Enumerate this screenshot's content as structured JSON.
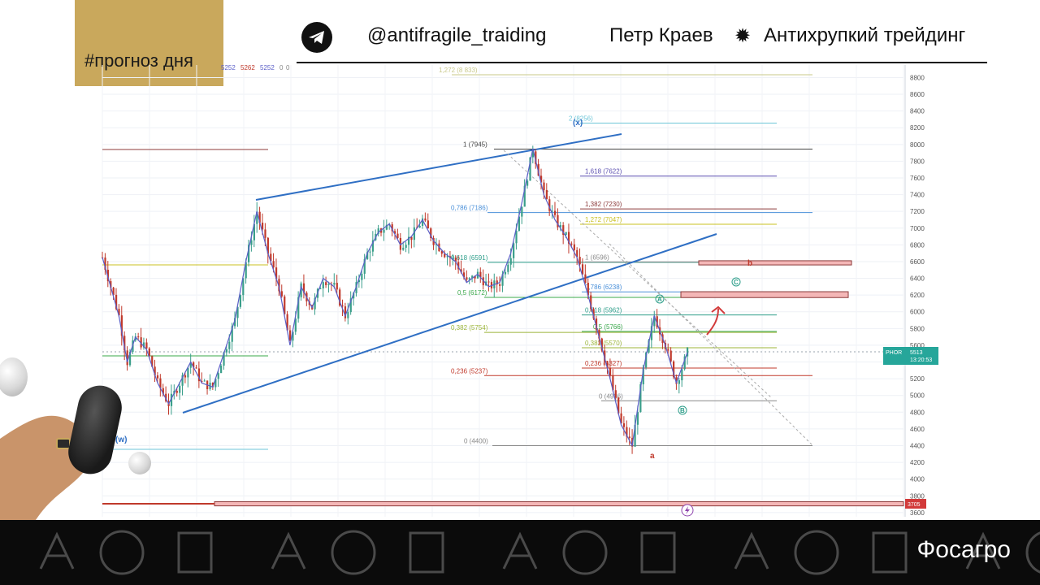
{
  "header": {
    "tag": "#прогноз дня",
    "handle": "@antifragile_traiding",
    "author": "Петр Краев",
    "separator": "✹",
    "project": "Антихрупкий трейдинг"
  },
  "icons": {
    "messenger": "telegram-icon",
    "lightning": "lightning-icon"
  },
  "footer": {
    "title": "Фосагро"
  },
  "colors": {
    "trendline": "#2f6fc4",
    "up_candle": "#3a9e8a",
    "down_candle": "#c0392b",
    "moving_average": "#5b5fc7",
    "header_tag_bg": "#c9a85c",
    "sell_zone": "#f4b7b7",
    "price_tag": "#26a69a",
    "footer_bg": "#0b0b0b"
  },
  "chart_data": {
    "type": "candlestick",
    "ticker": "PHOR",
    "last_price": "5513",
    "timer": "13:20:53",
    "stop_price": "3705",
    "top_values": [
      "5252",
      "5262",
      "5252",
      "0",
      "0"
    ],
    "ylim": [
      3550,
      8950
    ],
    "y_ticks": [
      3600,
      3800,
      4000,
      4200,
      4400,
      4600,
      4800,
      5000,
      5200,
      5400,
      5600,
      5800,
      6000,
      6200,
      6400,
      6600,
      6800,
      7000,
      7200,
      7400,
      7600,
      7800,
      8000,
      8200,
      8400,
      8600,
      8800
    ],
    "price_path": [
      [
        0,
        6650
      ],
      [
        3,
        6300
      ],
      [
        6,
        5950
      ],
      [
        9,
        5400
      ],
      [
        12,
        5700
      ],
      [
        16,
        5550
      ],
      [
        20,
        5150
      ],
      [
        24,
        4900
      ],
      [
        28,
        5150
      ],
      [
        32,
        5400
      ],
      [
        36,
        5150
      ],
      [
        40,
        5100
      ],
      [
        44,
        5500
      ],
      [
        48,
        5900
      ],
      [
        52,
        6600
      ],
      [
        56,
        7200
      ],
      [
        60,
        6700
      ],
      [
        64,
        6300
      ],
      [
        68,
        5600
      ],
      [
        72,
        6300
      ],
      [
        76,
        6050
      ],
      [
        80,
        6400
      ],
      [
        84,
        6300
      ],
      [
        88,
        5950
      ],
      [
        92,
        6300
      ],
      [
        96,
        6700
      ],
      [
        100,
        6950
      ],
      [
        104,
        7050
      ],
      [
        108,
        6800
      ],
      [
        112,
        6900
      ],
      [
        116,
        7100
      ],
      [
        120,
        6850
      ],
      [
        124,
        6700
      ],
      [
        128,
        6600
      ],
      [
        132,
        6350
      ],
      [
        136,
        6450
      ],
      [
        140,
        6300
      ],
      [
        144,
        6350
      ],
      [
        148,
        6700
      ],
      [
        152,
        7300
      ],
      [
        156,
        7950
      ],
      [
        160,
        7400
      ],
      [
        164,
        7100
      ],
      [
        168,
        6900
      ],
      [
        172,
        6650
      ],
      [
        176,
        6200
      ],
      [
        180,
        5700
      ],
      [
        184,
        5200
      ],
      [
        188,
        4650
      ],
      [
        192,
        4400
      ],
      [
        196,
        5300
      ],
      [
        200,
        5950
      ],
      [
        204,
        5600
      ],
      [
        208,
        5150
      ],
      [
        212,
        5513
      ]
    ],
    "fib_levels": [
      {
        "label": "1,272 (8 833)",
        "value": 8833,
        "color": "#c9c98a"
      },
      {
        "label": "2 (8256)",
        "value": 8256,
        "color": "#6ec6d8"
      },
      {
        "label": "1 (7945)",
        "value": 7945,
        "color": "#444444"
      },
      {
        "label": "1,618 (7622)",
        "value": 7622,
        "color": "#5b4fb0"
      },
      {
        "label": "1,382 (7230)",
        "value": 7230,
        "color": "#8c3a3a"
      },
      {
        "label": "0,786 (7186)",
        "value": 7186,
        "color": "#4a90d9"
      },
      {
        "label": "1,272 (7047)",
        "value": 7047,
        "color": "#c9c020"
      },
      {
        "label": "0,618 (6591)",
        "value": 6591,
        "color": "#2e9e8a"
      },
      {
        "label": "1 (6596)",
        "value": 6596,
        "color": "#888888"
      },
      {
        "label": "0,786 (6238)",
        "value": 6238,
        "color": "#4a90d9"
      },
      {
        "label": "0,5 (6172)",
        "value": 6172,
        "color": "#3aa84a"
      },
      {
        "label": "0,618 (5962)",
        "value": 5962,
        "color": "#2e9e8a"
      },
      {
        "label": "0,382 (5754)",
        "value": 5754,
        "color": "#9cb53a"
      },
      {
        "label": "0,5 (5766)",
        "value": 5766,
        "color": "#3aa84a"
      },
      {
        "label": "0,382 (5570)",
        "value": 5570,
        "color": "#9cb53a"
      },
      {
        "label": "0,236 (5327)",
        "value": 5327,
        "color": "#c0392b"
      },
      {
        "label": "0,236 (5237)",
        "value": 5237,
        "color": "#c0392b"
      },
      {
        "label": "0 (4936)",
        "value": 4936,
        "color": "#888888"
      },
      {
        "label": "0 (4400)",
        "value": 4400,
        "color": "#888888"
      }
    ],
    "wave_labels": [
      {
        "text": "(x)",
        "color": "#2f6fc4"
      },
      {
        "text": "(w)",
        "color": "#2f6fc4"
      },
      {
        "text": "A",
        "color": "#2e9e8a"
      },
      {
        "text": "B",
        "color": "#2e9e8a"
      },
      {
        "text": "C",
        "color": "#2e9e8a"
      },
      {
        "text": "a",
        "color": "#c0392b"
      },
      {
        "text": "b",
        "color": "#c0392b"
      }
    ],
    "zones": [
      {
        "name": "zone-b",
        "from": 6560,
        "to": 6610
      },
      {
        "name": "zone-c",
        "from": 6170,
        "to": 6240
      },
      {
        "name": "stop-zone",
        "from": 3680,
        "to": 3730
      }
    ]
  }
}
